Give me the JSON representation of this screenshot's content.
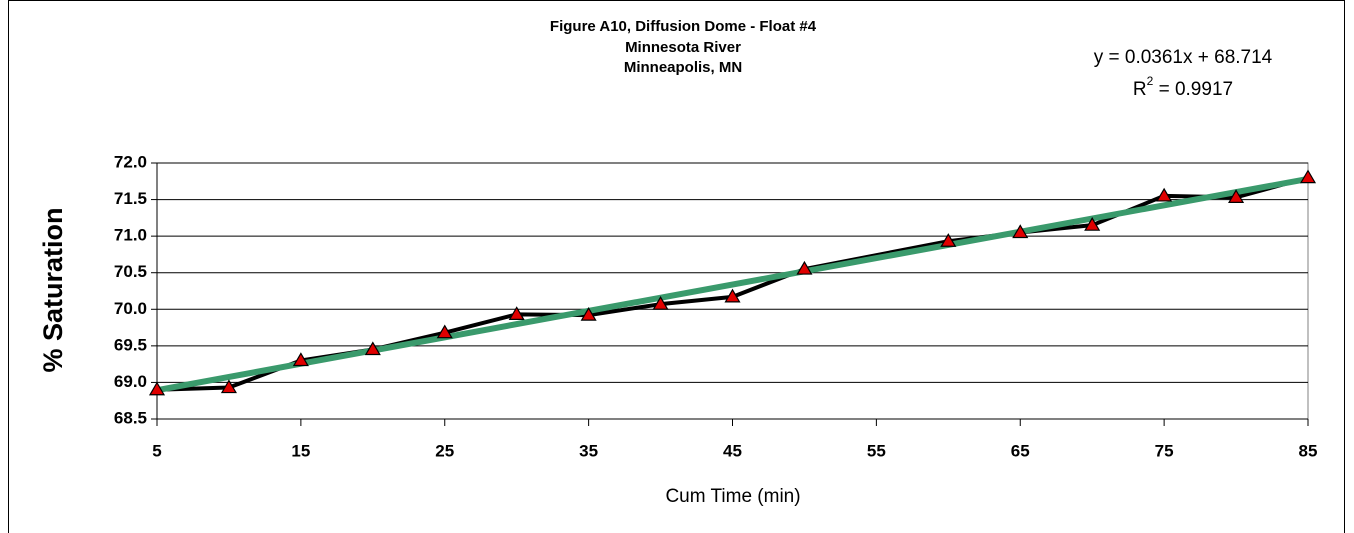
{
  "chart_data": {
    "type": "line",
    "title": "Figure A10, Diffusion Dome - Float #4",
    "subtitle": [
      "Minnesota River",
      "Minneapolis, MN"
    ],
    "x_label": "Cum Time (min)",
    "y_label": "% Saturation",
    "x": [
      5,
      10,
      15,
      20,
      25,
      30,
      35,
      40,
      45,
      50,
      60,
      65,
      70,
      75,
      80,
      85
    ],
    "series": [
      {
        "name": "% Saturation",
        "color": "#000000",
        "marker_color": "#e00000",
        "values": [
          68.9,
          68.93,
          69.3,
          69.45,
          69.68,
          69.93,
          69.92,
          70.07,
          70.17,
          70.55,
          70.93,
          71.05,
          71.15,
          71.55,
          71.53,
          71.8
        ]
      }
    ],
    "trendline": {
      "slope": 0.0361,
      "intercept": 68.714,
      "color": "#3a9a6c",
      "equation": "y = 0.0361x + 68.714",
      "r_squared": {
        "symbol": "R",
        "exponent": "2",
        "text": " = 0.9917"
      }
    },
    "xlim": [
      5,
      85
    ],
    "xticks": [
      5,
      15,
      25,
      35,
      45,
      55,
      65,
      75,
      85
    ],
    "ylim": [
      68.5,
      72
    ],
    "yticks": [
      68.5,
      {
        "value": 69,
        "label": "69.0"
      },
      69.5,
      {
        "value": 70,
        "label": "70.0"
      },
      70.5,
      {
        "value": 71,
        "label": "71.0"
      },
      71.5,
      {
        "value": 72,
        "label": "72.0"
      }
    ],
    "grid": true
  }
}
